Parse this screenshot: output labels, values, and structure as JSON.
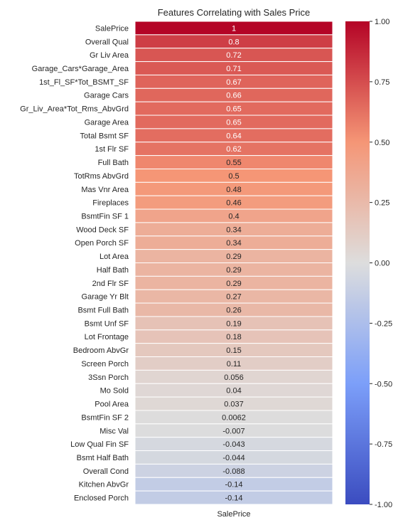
{
  "chart_data": {
    "type": "heatmap",
    "title": "Features Correlating with Sales Price",
    "column_label": "SalePrice",
    "rows": [
      "SalePrice",
      "Overall Qual",
      "Gr Liv Area",
      "Garage_Cars*Garage_Area",
      "1st_Fl_SF*Tot_BSMT_SF",
      "Garage Cars",
      "Gr_Liv_Area*Tot_Rms_AbvGrd",
      "Garage Area",
      "Total Bsmt SF",
      "1st Flr SF",
      "Full Bath",
      "TotRms AbvGrd",
      "Mas Vnr Area",
      "Fireplaces",
      "BsmtFin SF 1",
      "Wood Deck SF",
      "Open Porch SF",
      "Lot Area",
      "Half Bath",
      "2nd Flr SF",
      "Garage Yr Blt",
      "Bsmt Full Bath",
      "Bsmt Unf SF",
      "Lot Frontage",
      "Bedroom AbvGr",
      "Screen Porch",
      "3Ssn Porch",
      "Mo Sold",
      "Pool Area",
      "BsmtFin SF 2",
      "Misc Val",
      "Low Qual Fin SF",
      "Bsmt Half Bath",
      "Overall Cond",
      "Kitchen AbvGr",
      "Enclosed Porch"
    ],
    "values": [
      1,
      0.8,
      0.72,
      0.71,
      0.67,
      0.66,
      0.65,
      0.65,
      0.64,
      0.62,
      0.55,
      0.5,
      0.48,
      0.46,
      0.4,
      0.34,
      0.34,
      0.29,
      0.29,
      0.29,
      0.27,
      0.26,
      0.19,
      0.18,
      0.15,
      0.11,
      0.056,
      0.04,
      0.037,
      0.0062,
      -0.007,
      -0.043,
      -0.044,
      -0.088,
      -0.14,
      -0.14
    ],
    "labels": [
      "1",
      "0.8",
      "0.72",
      "0.71",
      "0.67",
      "0.66",
      "0.65",
      "0.65",
      "0.64",
      "0.62",
      "0.55",
      "0.5",
      "0.48",
      "0.46",
      "0.4",
      "0.34",
      "0.34",
      "0.29",
      "0.29",
      "0.29",
      "0.27",
      "0.26",
      "0.19",
      "0.18",
      "0.15",
      "0.11",
      "0.056",
      "0.04",
      "0.037",
      "0.0062",
      "-0.007",
      "-0.043",
      "-0.044",
      "-0.088",
      "-0.14",
      "-0.14"
    ],
    "colormap": "coolwarm",
    "vmin": -1,
    "vmax": 1,
    "colorbar_ticks": [
      "1.00",
      "0.75",
      "0.50",
      "0.25",
      "0.00",
      "-0.25",
      "-0.50",
      "-0.75",
      "-1.00"
    ],
    "colorbar_tick_values": [
      1,
      0.75,
      0.5,
      0.25,
      0,
      -0.25,
      -0.5,
      -0.75,
      -1
    ]
  }
}
